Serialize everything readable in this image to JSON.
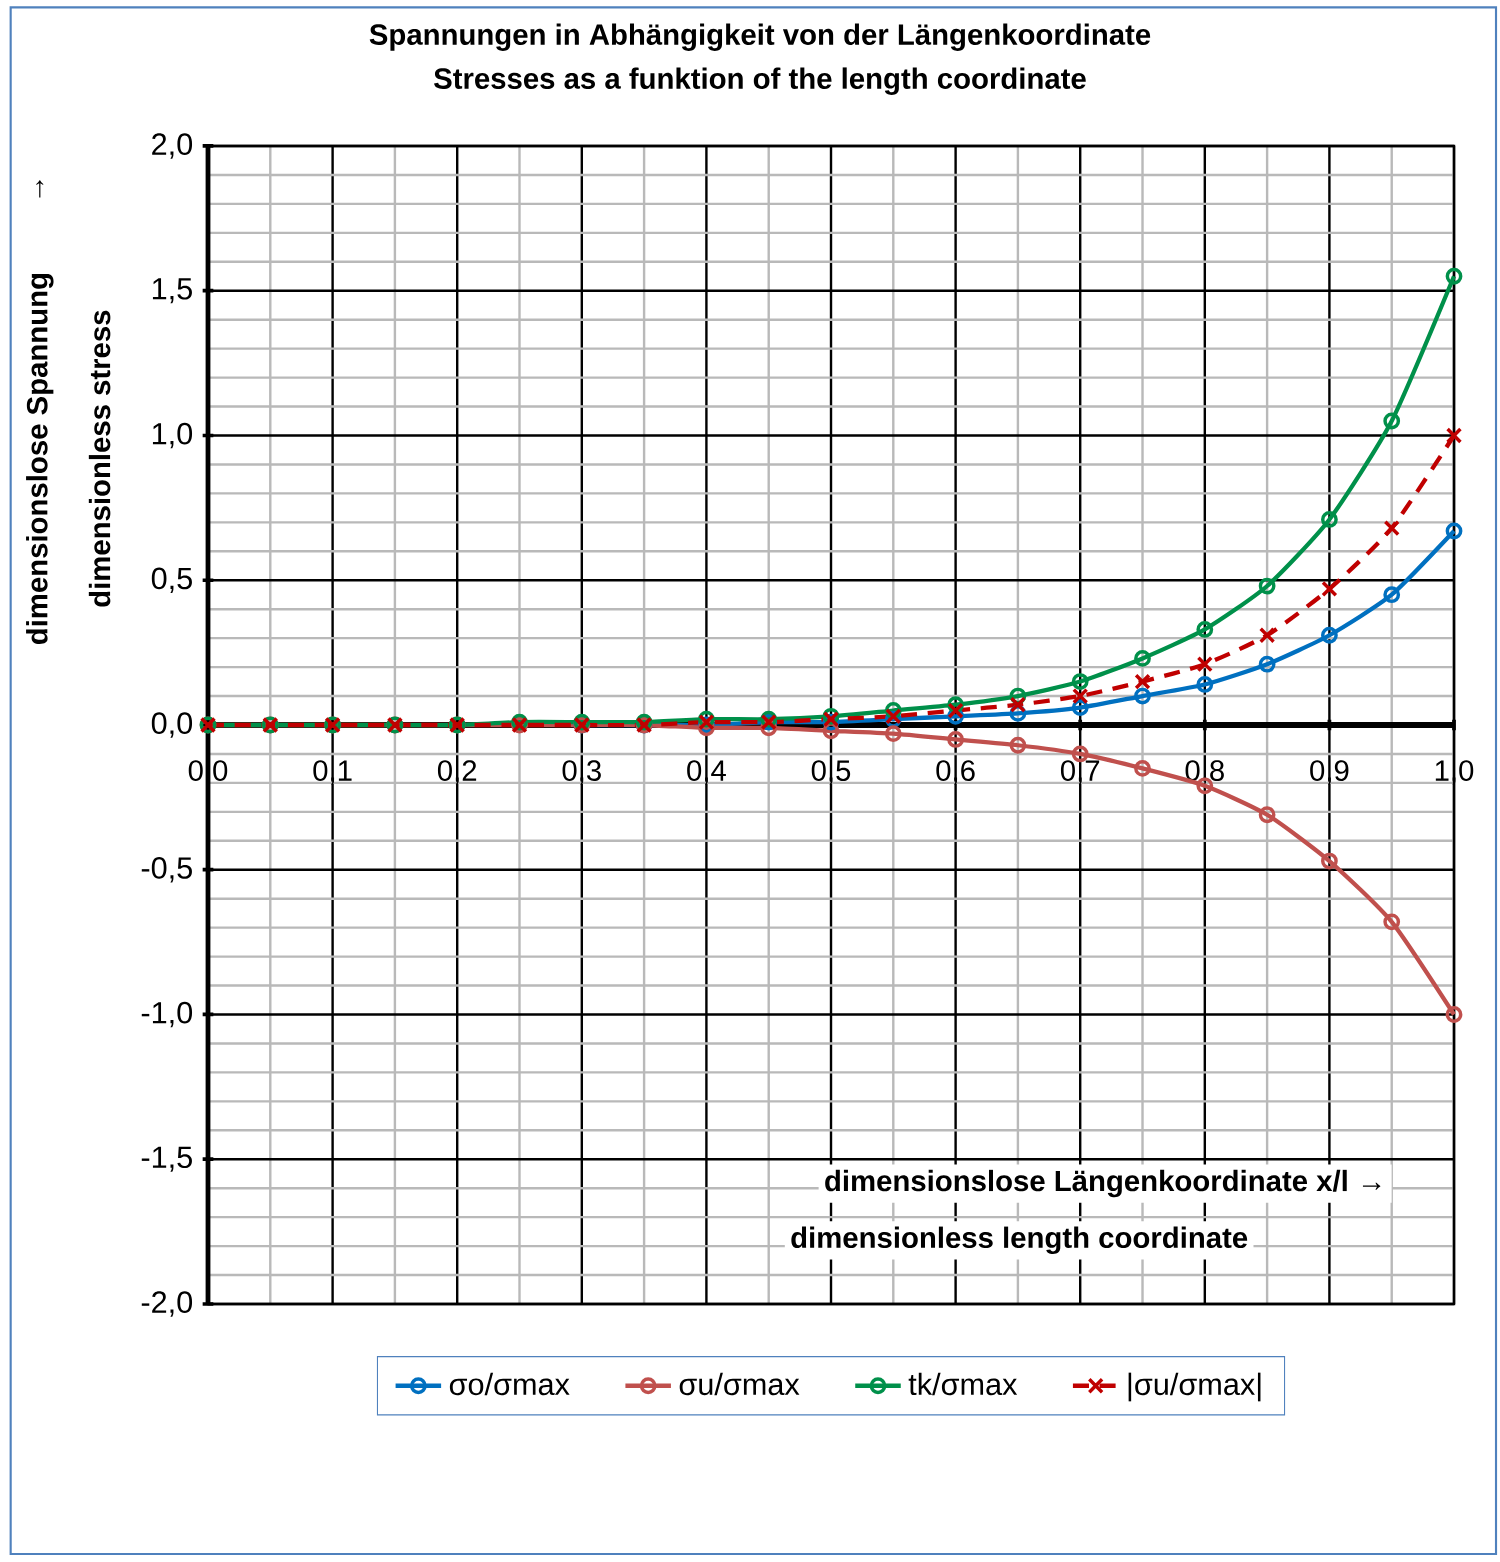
{
  "chart_data": {
    "type": "line",
    "title": "Spannungen in Abhängigkeit von der Längenkoordinate",
    "subtitle": "Stresses as a funktion of the length coordinate",
    "xlabel": "dimensionslose Längenkoordinate   x/l →",
    "ylabel": "dimensionslose Spannung",
    "annotations": [
      "dimensionless stress",
      "dimensionless length coordinate",
      "↑"
    ],
    "x": [
      0,
      0.05,
      0.1,
      0.15,
      0.2,
      0.25,
      0.3,
      0.35,
      0.4,
      0.45,
      0.5,
      0.55,
      0.6,
      0.65,
      0.7,
      0.75,
      0.8,
      0.85,
      0.9,
      0.95,
      1.0
    ],
    "series": [
      {
        "name": "σo/σmax",
        "color": "#0070c0",
        "marker": "circle",
        "line_style": "solid",
        "values": [
          null,
          null,
          null,
          null,
          null,
          null,
          0,
          0,
          0,
          0.01,
          0.01,
          0.02,
          0.03,
          0.04,
          0.06,
          0.1,
          0.14,
          0.21,
          0.31,
          0.45,
          0.67
        ]
      },
      {
        "name": "σu/σmax",
        "color": "#c0504d",
        "marker": "circle",
        "line_style": "solid",
        "values": [
          0,
          0,
          0,
          0,
          0,
          0,
          0,
          0,
          -0.01,
          -0.01,
          -0.02,
          -0.03,
          -0.05,
          -0.07,
          -0.1,
          -0.15,
          -0.21,
          -0.31,
          -0.47,
          -0.68,
          -1.0
        ]
      },
      {
        "name": "tk/σmax",
        "color": "#00904a",
        "marker": "circle",
        "line_style": "solid",
        "values": [
          0,
          0,
          0,
          0,
          0,
          0.01,
          0.01,
          0.01,
          0.02,
          0.02,
          0.03,
          0.05,
          0.07,
          0.1,
          0.15,
          0.23,
          0.33,
          0.48,
          0.71,
          1.05,
          1.55
        ]
      },
      {
        "name": "|σu/σmax|",
        "color": "#c00000",
        "marker": "cross",
        "line_style": "dashed",
        "values": [
          0,
          0,
          0,
          0,
          0,
          0,
          0,
          0,
          0.01,
          0.01,
          0.02,
          0.03,
          0.05,
          0.07,
          0.1,
          0.15,
          0.21,
          0.31,
          0.47,
          0.68,
          1.0
        ]
      }
    ],
    "xlim": [
      0,
      1.0
    ],
    "ylim": [
      -2.0,
      2.0
    ],
    "xticks": [
      {
        "value": 0,
        "label": "0,0"
      },
      {
        "value": 0.1,
        "label": "0,1"
      },
      {
        "value": 0.2,
        "label": "0,2"
      },
      {
        "value": 0.3,
        "label": "0,3"
      },
      {
        "value": 0.4,
        "label": "0,4"
      },
      {
        "value": 0.5,
        "label": "0,5"
      },
      {
        "value": 0.6,
        "label": "0,6"
      },
      {
        "value": 0.7,
        "label": "0,7"
      },
      {
        "value": 0.8,
        "label": "0,8"
      },
      {
        "value": 0.9,
        "label": "0,9"
      },
      {
        "value": 1.0,
        "label": "1,0"
      }
    ],
    "yticks": [
      {
        "value": -2.0,
        "label": "-2,0"
      },
      {
        "value": -1.5,
        "label": "-1,5"
      },
      {
        "value": -1.0,
        "label": "-1,0"
      },
      {
        "value": -0.5,
        "label": "-0,5"
      },
      {
        "value": 0,
        "label": "0,0"
      },
      {
        "value": 0.5,
        "label": "0,5"
      },
      {
        "value": 1.0,
        "label": "1,0"
      },
      {
        "value": 1.5,
        "label": "1,5"
      },
      {
        "value": 2.0,
        "label": "2,0"
      }
    ],
    "grid": true,
    "legend": "bottom"
  }
}
